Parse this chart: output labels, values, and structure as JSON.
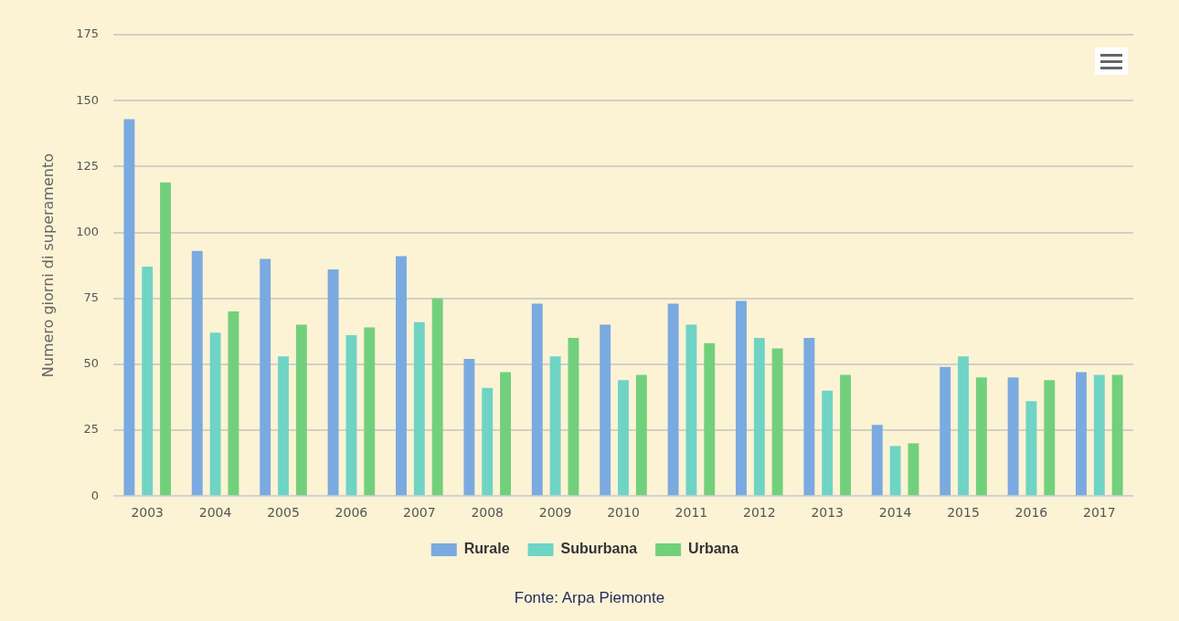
{
  "chart_data": {
    "type": "bar",
    "ylabel": "Numero giorni di superamento",
    "categories": [
      "2003",
      "2004",
      "2005",
      "2006",
      "2007",
      "2008",
      "2009",
      "2010",
      "2011",
      "2012",
      "2013",
      "2014",
      "2015",
      "2016",
      "2017"
    ],
    "series": [
      {
        "name": "Rurale",
        "color": "#7aaae0",
        "values": [
          143,
          93,
          90,
          86,
          91,
          52,
          73,
          65,
          73,
          74,
          60,
          27,
          49,
          45,
          47
        ]
      },
      {
        "name": "Suburbana",
        "color": "#6fd4c4",
        "values": [
          87,
          62,
          53,
          61,
          66,
          41,
          53,
          44,
          65,
          60,
          40,
          19,
          53,
          36,
          46
        ]
      },
      {
        "name": "Urbana",
        "color": "#72d07c",
        "values": [
          119,
          70,
          65,
          64,
          75,
          47,
          60,
          46,
          58,
          56,
          46,
          20,
          45,
          44,
          46
        ]
      }
    ],
    "ylim": [
      0,
      175
    ],
    "yticks": [
      0,
      25,
      50,
      75,
      100,
      125,
      150,
      175
    ],
    "grid": "y",
    "legend": "bottom",
    "annotations": [
      "Fonte: Arpa Piemonte"
    ]
  }
}
